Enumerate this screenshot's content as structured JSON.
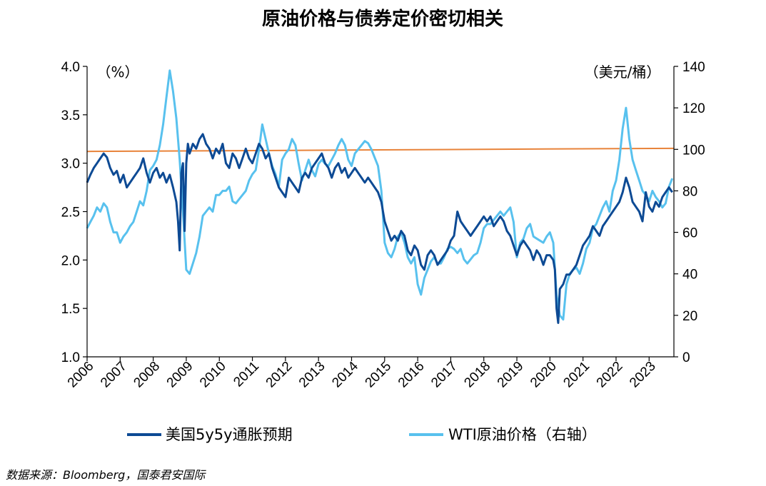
{
  "colors": {
    "series1": "#0d4a94",
    "series2": "#58c1ee",
    "refline": "#e8833a",
    "axis": "#000000"
  },
  "chart_data": {
    "type": "line",
    "title": "原油价格与债券定价密切相关",
    "left_unit": "（%）",
    "right_unit": "（美元/桶）",
    "source": "数据来源：Bloomberg，国泰君安国际",
    "x_ticks": [
      "2006",
      "2007",
      "2008",
      "2009",
      "2010",
      "2011",
      "2012",
      "2013",
      "2014",
      "2015",
      "2016",
      "2017",
      "2018",
      "2019",
      "2020",
      "2021",
      "2022",
      "2023"
    ],
    "x_range": [
      2006.0,
      2023.75
    ],
    "y_left": {
      "min": 1.0,
      "max": 4.0,
      "ticks": [
        "1.0",
        "1.5",
        "2.0",
        "2.5",
        "3.0",
        "3.5",
        "4.0"
      ]
    },
    "y_right": {
      "min": 0,
      "max": 140,
      "ticks": [
        "0",
        "20",
        "40",
        "60",
        "80",
        "100",
        "120",
        "140"
      ]
    },
    "legend_position": "bottom",
    "series": [
      {
        "name": "美国5y5y通胀预期",
        "axis": "left",
        "x": [
          2006.0,
          2006.1,
          2006.2,
          2006.3,
          2006.4,
          2006.5,
          2006.6,
          2006.7,
          2006.8,
          2006.9,
          2007.0,
          2007.1,
          2007.2,
          2007.3,
          2007.4,
          2007.5,
          2007.6,
          2007.7,
          2007.8,
          2007.9,
          2008.0,
          2008.1,
          2008.2,
          2008.3,
          2008.4,
          2008.5,
          2008.6,
          2008.7,
          2008.75,
          2008.8,
          2008.85,
          2008.9,
          2008.95,
          2009.0,
          2009.05,
          2009.1,
          2009.2,
          2009.3,
          2009.4,
          2009.5,
          2009.6,
          2009.7,
          2009.8,
          2009.9,
          2010.0,
          2010.1,
          2010.2,
          2010.3,
          2010.4,
          2010.5,
          2010.6,
          2010.7,
          2010.8,
          2010.9,
          2011.0,
          2011.1,
          2011.2,
          2011.3,
          2011.4,
          2011.5,
          2011.6,
          2011.7,
          2011.8,
          2011.9,
          2012.0,
          2012.1,
          2012.2,
          2012.3,
          2012.4,
          2012.5,
          2012.6,
          2012.7,
          2012.8,
          2012.9,
          2013.0,
          2013.1,
          2013.2,
          2013.3,
          2013.4,
          2013.5,
          2013.6,
          2013.7,
          2013.8,
          2013.9,
          2014.0,
          2014.1,
          2014.2,
          2014.3,
          2014.4,
          2014.5,
          2014.6,
          2014.7,
          2014.8,
          2014.9,
          2015.0,
          2015.1,
          2015.2,
          2015.3,
          2015.4,
          2015.5,
          2015.6,
          2015.7,
          2015.8,
          2015.9,
          2016.0,
          2016.1,
          2016.2,
          2016.3,
          2016.4,
          2016.5,
          2016.6,
          2016.7,
          2016.8,
          2016.9,
          2017.0,
          2017.1,
          2017.2,
          2017.3,
          2017.4,
          2017.5,
          2017.6,
          2017.7,
          2017.8,
          2017.9,
          2018.0,
          2018.1,
          2018.2,
          2018.3,
          2018.4,
          2018.5,
          2018.6,
          2018.7,
          2018.8,
          2018.9,
          2019.0,
          2019.1,
          2019.2,
          2019.3,
          2019.4,
          2019.5,
          2019.6,
          2019.7,
          2019.8,
          2019.9,
          2020.0,
          2020.1,
          2020.15,
          2020.2,
          2020.25,
          2020.3,
          2020.4,
          2020.5,
          2020.6,
          2020.7,
          2020.8,
          2020.9,
          2021.0,
          2021.1,
          2021.2,
          2021.3,
          2021.4,
          2021.5,
          2021.6,
          2021.7,
          2021.8,
          2021.9,
          2022.0,
          2022.1,
          2022.2,
          2022.3,
          2022.4,
          2022.5,
          2022.6,
          2022.7,
          2022.8,
          2022.9,
          2023.0,
          2023.1,
          2023.2,
          2023.3,
          2023.4,
          2023.5,
          2023.6,
          2023.7
        ],
        "values": [
          2.8,
          2.88,
          2.95,
          3.0,
          3.05,
          3.1,
          3.06,
          2.95,
          2.88,
          2.92,
          2.8,
          2.88,
          2.75,
          2.8,
          2.85,
          2.9,
          2.95,
          3.05,
          2.9,
          2.8,
          2.9,
          2.95,
          2.85,
          2.9,
          2.8,
          2.88,
          2.75,
          2.6,
          2.4,
          2.1,
          2.9,
          3.0,
          2.3,
          3.0,
          3.2,
          3.1,
          3.2,
          3.15,
          3.25,
          3.3,
          3.2,
          3.15,
          3.05,
          3.15,
          3.1,
          3.2,
          3.0,
          2.95,
          3.1,
          3.05,
          2.95,
          3.05,
          3.15,
          3.05,
          3.0,
          3.1,
          3.2,
          3.15,
          3.05,
          3.1,
          2.95,
          2.85,
          2.75,
          2.7,
          2.65,
          2.85,
          2.8,
          2.75,
          2.7,
          2.85,
          2.9,
          2.85,
          2.95,
          3.0,
          3.05,
          3.1,
          3.0,
          2.95,
          2.85,
          2.95,
          3.0,
          2.9,
          2.95,
          2.85,
          2.9,
          2.95,
          2.9,
          2.85,
          2.8,
          2.85,
          2.8,
          2.75,
          2.7,
          2.6,
          2.4,
          2.3,
          2.2,
          2.25,
          2.2,
          2.3,
          2.25,
          2.1,
          2.05,
          2.15,
          2.1,
          1.95,
          1.9,
          2.05,
          2.1,
          2.05,
          1.95,
          2.0,
          2.05,
          2.1,
          2.2,
          2.25,
          2.5,
          2.4,
          2.35,
          2.3,
          2.25,
          2.3,
          2.35,
          2.4,
          2.45,
          2.4,
          2.45,
          2.35,
          2.4,
          2.45,
          2.4,
          2.3,
          2.25,
          2.15,
          2.05,
          2.15,
          2.2,
          2.15,
          2.1,
          2.0,
          2.1,
          2.05,
          1.95,
          2.05,
          2.05,
          2.0,
          1.9,
          1.5,
          1.35,
          1.7,
          1.75,
          1.85,
          1.85,
          1.9,
          1.95,
          2.05,
          2.15,
          2.2,
          2.25,
          2.35,
          2.3,
          2.25,
          2.35,
          2.4,
          2.45,
          2.5,
          2.55,
          2.6,
          2.7,
          2.85,
          2.75,
          2.6,
          2.55,
          2.5,
          2.4,
          2.7,
          2.55,
          2.5,
          2.6,
          2.55,
          2.65,
          2.7,
          2.75,
          2.7
        ]
      },
      {
        "name": "WTI原油价格（右轴）",
        "axis": "right",
        "x": [
          2006.0,
          2006.1,
          2006.2,
          2006.3,
          2006.4,
          2006.5,
          2006.6,
          2006.7,
          2006.8,
          2006.9,
          2007.0,
          2007.1,
          2007.2,
          2007.3,
          2007.4,
          2007.5,
          2007.6,
          2007.7,
          2007.8,
          2007.9,
          2008.0,
          2008.1,
          2008.2,
          2008.3,
          2008.4,
          2008.5,
          2008.6,
          2008.7,
          2008.8,
          2008.9,
          2009.0,
          2009.1,
          2009.2,
          2009.3,
          2009.4,
          2009.5,
          2009.6,
          2009.7,
          2009.8,
          2009.9,
          2010.0,
          2010.1,
          2010.2,
          2010.3,
          2010.4,
          2010.5,
          2010.6,
          2010.7,
          2010.8,
          2010.9,
          2011.0,
          2011.1,
          2011.2,
          2011.3,
          2011.4,
          2011.5,
          2011.6,
          2011.7,
          2011.8,
          2011.9,
          2012.0,
          2012.1,
          2012.2,
          2012.3,
          2012.4,
          2012.5,
          2012.6,
          2012.7,
          2012.8,
          2012.9,
          2013.0,
          2013.1,
          2013.2,
          2013.3,
          2013.4,
          2013.5,
          2013.6,
          2013.7,
          2013.8,
          2013.9,
          2014.0,
          2014.1,
          2014.2,
          2014.3,
          2014.4,
          2014.5,
          2014.6,
          2014.7,
          2014.8,
          2014.9,
          2015.0,
          2015.1,
          2015.2,
          2015.3,
          2015.4,
          2015.5,
          2015.6,
          2015.7,
          2015.8,
          2015.9,
          2016.0,
          2016.1,
          2016.2,
          2016.3,
          2016.4,
          2016.5,
          2016.6,
          2016.7,
          2016.8,
          2016.9,
          2017.0,
          2017.1,
          2017.2,
          2017.3,
          2017.4,
          2017.5,
          2017.6,
          2017.7,
          2017.8,
          2017.9,
          2018.0,
          2018.1,
          2018.2,
          2018.3,
          2018.4,
          2018.5,
          2018.6,
          2018.7,
          2018.8,
          2018.9,
          2019.0,
          2019.1,
          2019.2,
          2019.3,
          2019.4,
          2019.5,
          2019.6,
          2019.7,
          2019.8,
          2019.9,
          2020.0,
          2020.1,
          2020.2,
          2020.3,
          2020.4,
          2020.5,
          2020.6,
          2020.7,
          2020.8,
          2020.9,
          2021.0,
          2021.1,
          2021.2,
          2021.3,
          2021.4,
          2021.5,
          2021.6,
          2021.7,
          2021.8,
          2021.9,
          2022.0,
          2022.1,
          2022.2,
          2022.3,
          2022.4,
          2022.5,
          2022.6,
          2022.7,
          2022.8,
          2022.9,
          2023.0,
          2023.1,
          2023.2,
          2023.3,
          2023.4,
          2023.5,
          2023.6,
          2023.7
        ],
        "values": [
          62,
          65,
          68,
          72,
          70,
          74,
          72,
          65,
          60,
          60,
          55,
          58,
          60,
          63,
          65,
          70,
          75,
          73,
          80,
          90,
          92,
          95,
          102,
          112,
          125,
          138,
          128,
          115,
          95,
          70,
          42,
          40,
          45,
          50,
          58,
          68,
          70,
          72,
          70,
          78,
          78,
          80,
          80,
          82,
          75,
          74,
          76,
          78,
          80,
          85,
          88,
          90,
          100,
          112,
          105,
          98,
          92,
          88,
          82,
          95,
          98,
          100,
          105,
          102,
          93,
          85,
          90,
          95,
          90,
          87,
          93,
          95,
          93,
          92,
          95,
          98,
          102,
          105,
          102,
          95,
          92,
          98,
          100,
          102,
          104,
          103,
          100,
          96,
          92,
          80,
          55,
          50,
          48,
          52,
          58,
          60,
          55,
          48,
          45,
          48,
          35,
          30,
          38,
          42,
          46,
          48,
          45,
          45,
          48,
          52,
          53,
          52,
          50,
          52,
          47,
          45,
          47,
          49,
          50,
          55,
          62,
          64,
          64,
          66,
          68,
          70,
          68,
          70,
          72,
          65,
          48,
          55,
          57,
          62,
          64,
          58,
          57,
          56,
          55,
          58,
          60,
          55,
          30,
          20,
          18,
          35,
          40,
          42,
          43,
          40,
          45,
          52,
          55,
          62,
          64,
          68,
          72,
          75,
          70,
          80,
          85,
          95,
          110,
          120,
          105,
          95,
          90,
          85,
          80,
          78,
          75,
          80,
          77,
          75,
          72,
          74,
          82,
          86
        ]
      }
    ]
  }
}
